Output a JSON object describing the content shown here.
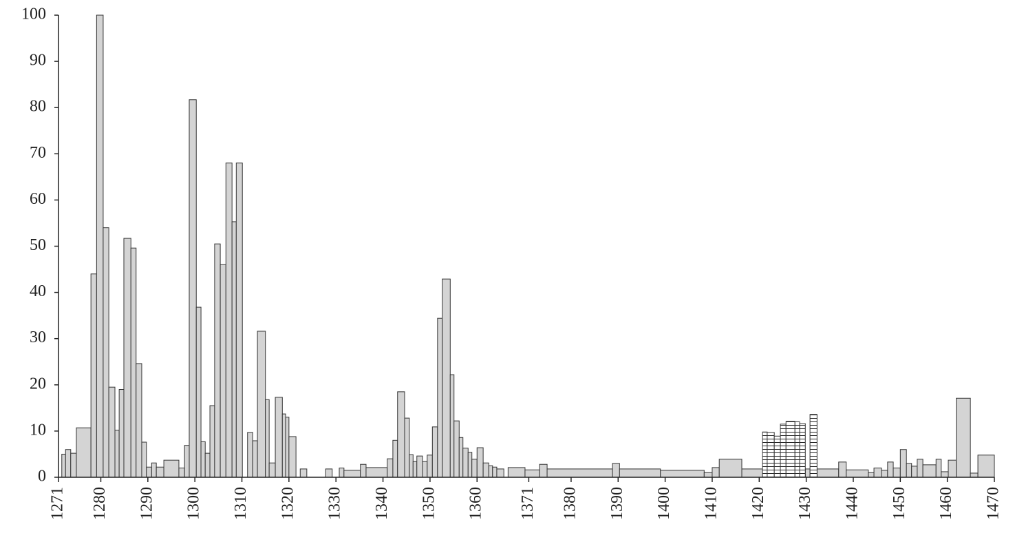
{
  "chart_data": {
    "type": "histogram",
    "bins": [
      1271.7,
      1272.5,
      1273.6,
      1274.8,
      1277.9,
      1279.1,
      1280.5,
      1281.7,
      1283.0,
      1283.9,
      1284.9,
      1286.4,
      1287.5,
      1288.7,
      1289.7,
      1290.8,
      1291.8,
      1293.4,
      1296.6,
      1297.8,
      1298.8,
      1300.3,
      1301.3,
      1302.2,
      1303.2,
      1304.2,
      1305.4,
      1306.6,
      1307.9,
      1308.8,
      1310.1,
      1311.2,
      1312.3,
      1313.3,
      1315.0,
      1315.8,
      1317.1,
      1318.6,
      1319.3,
      1320.0,
      1321.5,
      1322.4,
      1323.8,
      1327.8,
      1329.2,
      1330.7,
      1331.7,
      1335.2,
      1336.4,
      1340.9,
      1342.1,
      1343.1,
      1344.6,
      1345.6,
      1346.4,
      1347.2,
      1348.4,
      1349.4,
      1350.5,
      1351.6,
      1352.6,
      1354.3,
      1355.1,
      1356.2,
      1357.0,
      1358.1,
      1358.9,
      1360.0,
      1361.3,
      1362.5,
      1363.3,
      1364.2,
      1365.7,
      1366.6,
      1370.2,
      1373.3,
      1374.9,
      1388.8,
      1390.3,
      1399.0,
      1408.3,
      1410.0,
      1411.5,
      1416.3,
      1420.7,
      1421.7,
      1423.2,
      1424.5,
      1425.7,
      1427.6,
      1428.6,
      1429.8,
      1430.8,
      1432.3,
      1436.9,
      1438.5,
      1443.2,
      1444.4,
      1446.0,
      1447.3,
      1448.5,
      1450.0,
      1451.3,
      1452.4,
      1453.6,
      1454.8,
      1457.6,
      1458.7,
      1460.2,
      1461.9,
      1464.9,
      1466.5,
      1470.0
    ],
    "series": [
      {
        "color": "#d4d4d4",
        "values": [
          5,
          6,
          5.2,
          10.7,
          44,
          100,
          54,
          19.5,
          10.2,
          19,
          51.7,
          49.6,
          24.6,
          7.6,
          2.2,
          3.1,
          2.2,
          3.7,
          2,
          6.9,
          81.7,
          36.8,
          7.7,
          5.2,
          15.5,
          50.5,
          46,
          68,
          55.3,
          68,
          null,
          9.7,
          7.9,
          31.6,
          16.8,
          3.1,
          17.3,
          13.7,
          13,
          8.8,
          null,
          1.8,
          null,
          1.8,
          null,
          2,
          1.5,
          2.8,
          2.1,
          4,
          8,
          18.5,
          12.8,
          4.9,
          3.4,
          4.6,
          3.4,
          4.8,
          10.9,
          34.4,
          42.9,
          22.2,
          12.2,
          8.6,
          6.3,
          5.4,
          3.9,
          6.4,
          3.1,
          2.5,
          2.2,
          1.8,
          null,
          2.1,
          1.6,
          2.8,
          1.8,
          3,
          1.8,
          1.5,
          1,
          2.1,
          3.9,
          1.8,
          null,
          null,
          null,
          null,
          null,
          null,
          null,
          1.8,
          null,
          1.8,
          3.3,
          1.6,
          1,
          2,
          1.5,
          3.3,
          2,
          6,
          3,
          2.4,
          3.9,
          2.7,
          3.9,
          1.2,
          3.7,
          17.1,
          0.9,
          4.8
        ]
      },
      {
        "color": "#ffffff",
        "hatch": true,
        "values": [
          null,
          null,
          null,
          null,
          null,
          null,
          null,
          null,
          null,
          null,
          null,
          null,
          null,
          null,
          null,
          null,
          null,
          null,
          null,
          null,
          null,
          null,
          null,
          null,
          null,
          null,
          null,
          null,
          null,
          null,
          null,
          null,
          null,
          null,
          null,
          null,
          null,
          null,
          null,
          null,
          null,
          null,
          null,
          null,
          null,
          null,
          null,
          null,
          null,
          null,
          null,
          null,
          null,
          null,
          null,
          null,
          null,
          null,
          null,
          null,
          null,
          null,
          null,
          null,
          null,
          null,
          null,
          null,
          null,
          null,
          null,
          null,
          null,
          null,
          null,
          null,
          null,
          null,
          null,
          null,
          null,
          null,
          null,
          null,
          9.8,
          9.7,
          8.9,
          11.5,
          12.1,
          12,
          11.6,
          null,
          13.6,
          null,
          null,
          null,
          null,
          null,
          null,
          null,
          null,
          null,
          null,
          null,
          null,
          null,
          null,
          null,
          null,
          null,
          null,
          null
        ]
      }
    ],
    "xlim": [
      1271,
      1470
    ],
    "xticks": [
      1271,
      1280,
      1290,
      1300,
      1310,
      1320,
      1330,
      1340,
      1350,
      1360,
      1371,
      1380,
      1390,
      1400,
      1410,
      1420,
      1430,
      1440,
      1450,
      1460,
      1470
    ],
    "ylim": [
      0,
      100
    ],
    "yticks": [
      0,
      10,
      20,
      30,
      40,
      50,
      60,
      70,
      80,
      90,
      100
    ]
  }
}
